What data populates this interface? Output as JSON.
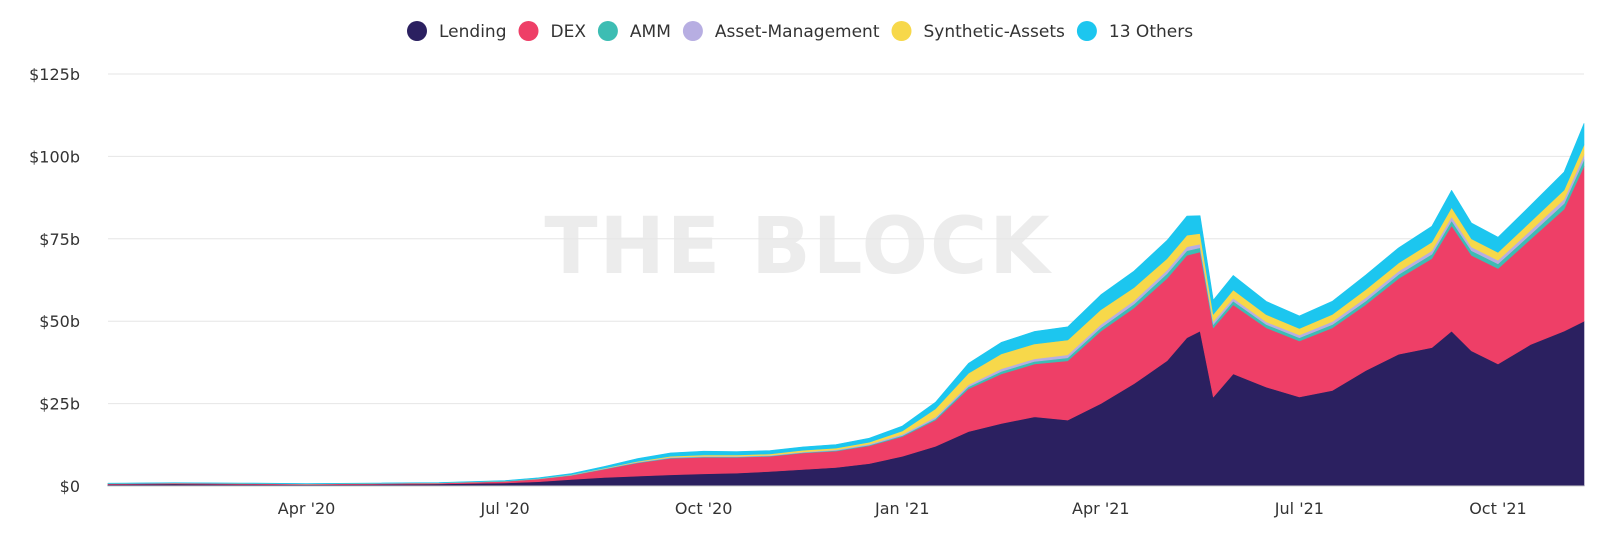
{
  "watermark": "THE BLOCK",
  "chart_data": {
    "type": "area",
    "stacked": true,
    "title": "",
    "xlabel": "",
    "ylabel": "",
    "ylim": [
      0,
      125
    ],
    "y_unit": "billion USD",
    "y_ticks": [
      {
        "value": 0,
        "label": "$0"
      },
      {
        "value": 25,
        "label": "$25b"
      },
      {
        "value": 50,
        "label": "$50b"
      },
      {
        "value": 75,
        "label": "$75b"
      },
      {
        "value": 100,
        "label": "$100b"
      },
      {
        "value": 125,
        "label": "$125b"
      }
    ],
    "x_range_months": [
      0,
      22.3
    ],
    "x_ticks": [
      {
        "value": 3,
        "label": "Apr '20"
      },
      {
        "value": 6,
        "label": "Jul '20"
      },
      {
        "value": 9,
        "label": "Oct '20"
      },
      {
        "value": 12,
        "label": "Jan '21"
      },
      {
        "value": 15,
        "label": "Apr '21"
      },
      {
        "value": 18,
        "label": "Jul '21"
      },
      {
        "value": 21,
        "label": "Oct '21"
      }
    ],
    "legend_position": "top-center",
    "x": [
      0,
      1,
      2,
      3,
      4,
      5,
      6,
      6.5,
      7,
      7.5,
      8,
      8.5,
      9,
      9.5,
      10,
      10.5,
      11,
      11.5,
      12,
      12.5,
      13,
      13.5,
      14,
      14.5,
      15,
      15.5,
      16,
      16.3,
      16.5,
      16.7,
      17,
      17.5,
      18,
      18.5,
      19,
      19.5,
      20,
      20.3,
      20.6,
      21,
      21.5,
      22,
      22.3
    ],
    "series": [
      {
        "name": "Lending",
        "color": "#2b2060",
        "values": [
          0.5,
          0.6,
          0.5,
          0.4,
          0.5,
          0.6,
          0.9,
          1.3,
          2.0,
          2.6,
          3.0,
          3.4,
          3.7,
          3.9,
          4.4,
          5.0,
          5.6,
          6.8,
          9.0,
          12.0,
          16.5,
          19.0,
          21.0,
          20.0,
          25.0,
          31.0,
          38.0,
          45.0,
          47.0,
          27.0,
          34.0,
          30.0,
          27.0,
          29.0,
          35.0,
          40.0,
          42.0,
          47.0,
          41.0,
          37.0,
          43.0,
          47.0,
          50.0
        ]
      },
      {
        "name": "DEX",
        "color": "#ee3f67",
        "values": [
          0.2,
          0.25,
          0.25,
          0.2,
          0.25,
          0.3,
          0.5,
          0.8,
          1.2,
          2.5,
          4.0,
          5.0,
          5.0,
          4.8,
          4.6,
          5.0,
          5.0,
          5.4,
          6.0,
          8.0,
          13.0,
          15.0,
          16.0,
          18.0,
          22.0,
          23.0,
          25.0,
          25.0,
          24.0,
          21.0,
          21.0,
          18.0,
          17.0,
          19.0,
          20.0,
          23.0,
          27.0,
          32.0,
          29.0,
          29.0,
          32.0,
          37.0,
          47.0
        ]
      },
      {
        "name": "AMM",
        "color": "#3dbdb3",
        "values": [
          0.02,
          0.02,
          0.02,
          0.02,
          0.02,
          0.02,
          0.05,
          0.08,
          0.1,
          0.12,
          0.15,
          0.15,
          0.15,
          0.15,
          0.15,
          0.15,
          0.2,
          0.2,
          0.3,
          0.4,
          0.6,
          0.8,
          0.8,
          0.9,
          1.0,
          1.2,
          1.4,
          1.4,
          1.3,
          1.0,
          1.1,
          1.0,
          1.0,
          1.0,
          1.1,
          1.2,
          1.3,
          1.5,
          1.4,
          1.4,
          1.5,
          1.7,
          2.0
        ]
      },
      {
        "name": "Asset-Management",
        "color": "#b7aee2",
        "values": [
          0.03,
          0.03,
          0.03,
          0.03,
          0.03,
          0.03,
          0.05,
          0.08,
          0.1,
          0.12,
          0.15,
          0.2,
          0.2,
          0.2,
          0.2,
          0.2,
          0.2,
          0.3,
          0.4,
          0.5,
          0.6,
          0.8,
          0.8,
          0.9,
          1.0,
          1.0,
          1.1,
          1.2,
          1.1,
          0.9,
          0.9,
          0.8,
          0.8,
          0.9,
          1.0,
          1.0,
          1.1,
          1.2,
          1.1,
          1.1,
          1.2,
          1.3,
          1.5
        ]
      },
      {
        "name": "Synthetic-Assets",
        "color": "#f7d84a",
        "values": [
          0.01,
          0.01,
          0.01,
          0.01,
          0.01,
          0.01,
          0.02,
          0.03,
          0.05,
          0.1,
          0.2,
          0.3,
          0.4,
          0.4,
          0.4,
          0.5,
          0.5,
          0.6,
          1.0,
          2.5,
          3.5,
          4.5,
          4.5,
          4.5,
          4.5,
          4.0,
          3.5,
          3.5,
          3.2,
          2.2,
          2.5,
          2.2,
          2.0,
          2.2,
          2.5,
          2.5,
          2.6,
          2.8,
          2.5,
          2.4,
          2.6,
          2.8,
          3.0
        ]
      },
      {
        "name": "13 Others",
        "color": "#1cc6ef",
        "values": [
          0.1,
          0.1,
          0.1,
          0.1,
          0.1,
          0.1,
          0.15,
          0.2,
          0.3,
          0.5,
          0.8,
          1.0,
          1.1,
          1.0,
          1.0,
          1.0,
          1.1,
          1.2,
          1.5,
          2.0,
          3.0,
          3.5,
          3.8,
          4.0,
          4.5,
          5.0,
          5.5,
          5.8,
          5.4,
          4.3,
          4.4,
          4.0,
          3.8,
          4.0,
          4.4,
          4.6,
          4.8,
          5.2,
          4.8,
          4.6,
          5.0,
          5.5,
          6.5
        ]
      }
    ]
  }
}
